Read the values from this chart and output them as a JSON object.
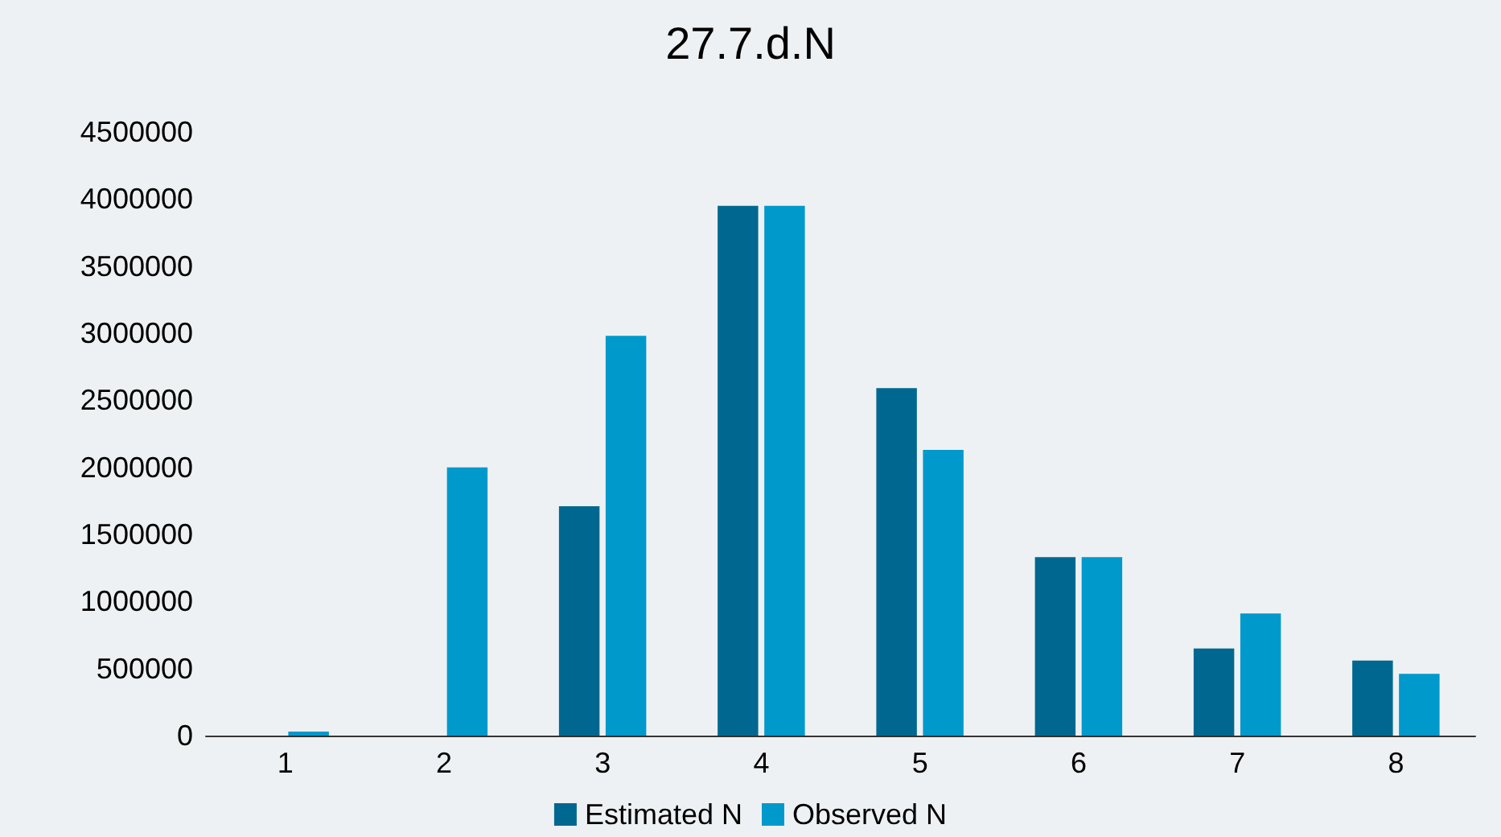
{
  "chart_data": {
    "type": "bar",
    "title": "27.7.d.N",
    "categories": [
      "1",
      "2",
      "3",
      "4",
      "5",
      "6",
      "7",
      "8"
    ],
    "series": [
      {
        "name": "Estimated N",
        "color": "#006890",
        "values": [
          null,
          null,
          1710000,
          3950000,
          2590000,
          1330000,
          650000,
          560000
        ]
      },
      {
        "name": "Observed N",
        "color": "#0099cc",
        "values": [
          30000,
          2000000,
          2980000,
          3950000,
          2130000,
          1330000,
          910000,
          460000
        ]
      }
    ],
    "ylim": [
      0,
      4500000
    ],
    "yticks": [
      0,
      500000,
      1000000,
      1500000,
      2000000,
      2500000,
      3000000,
      3500000,
      4000000,
      4500000
    ],
    "grid": false,
    "legend": "bottom"
  }
}
